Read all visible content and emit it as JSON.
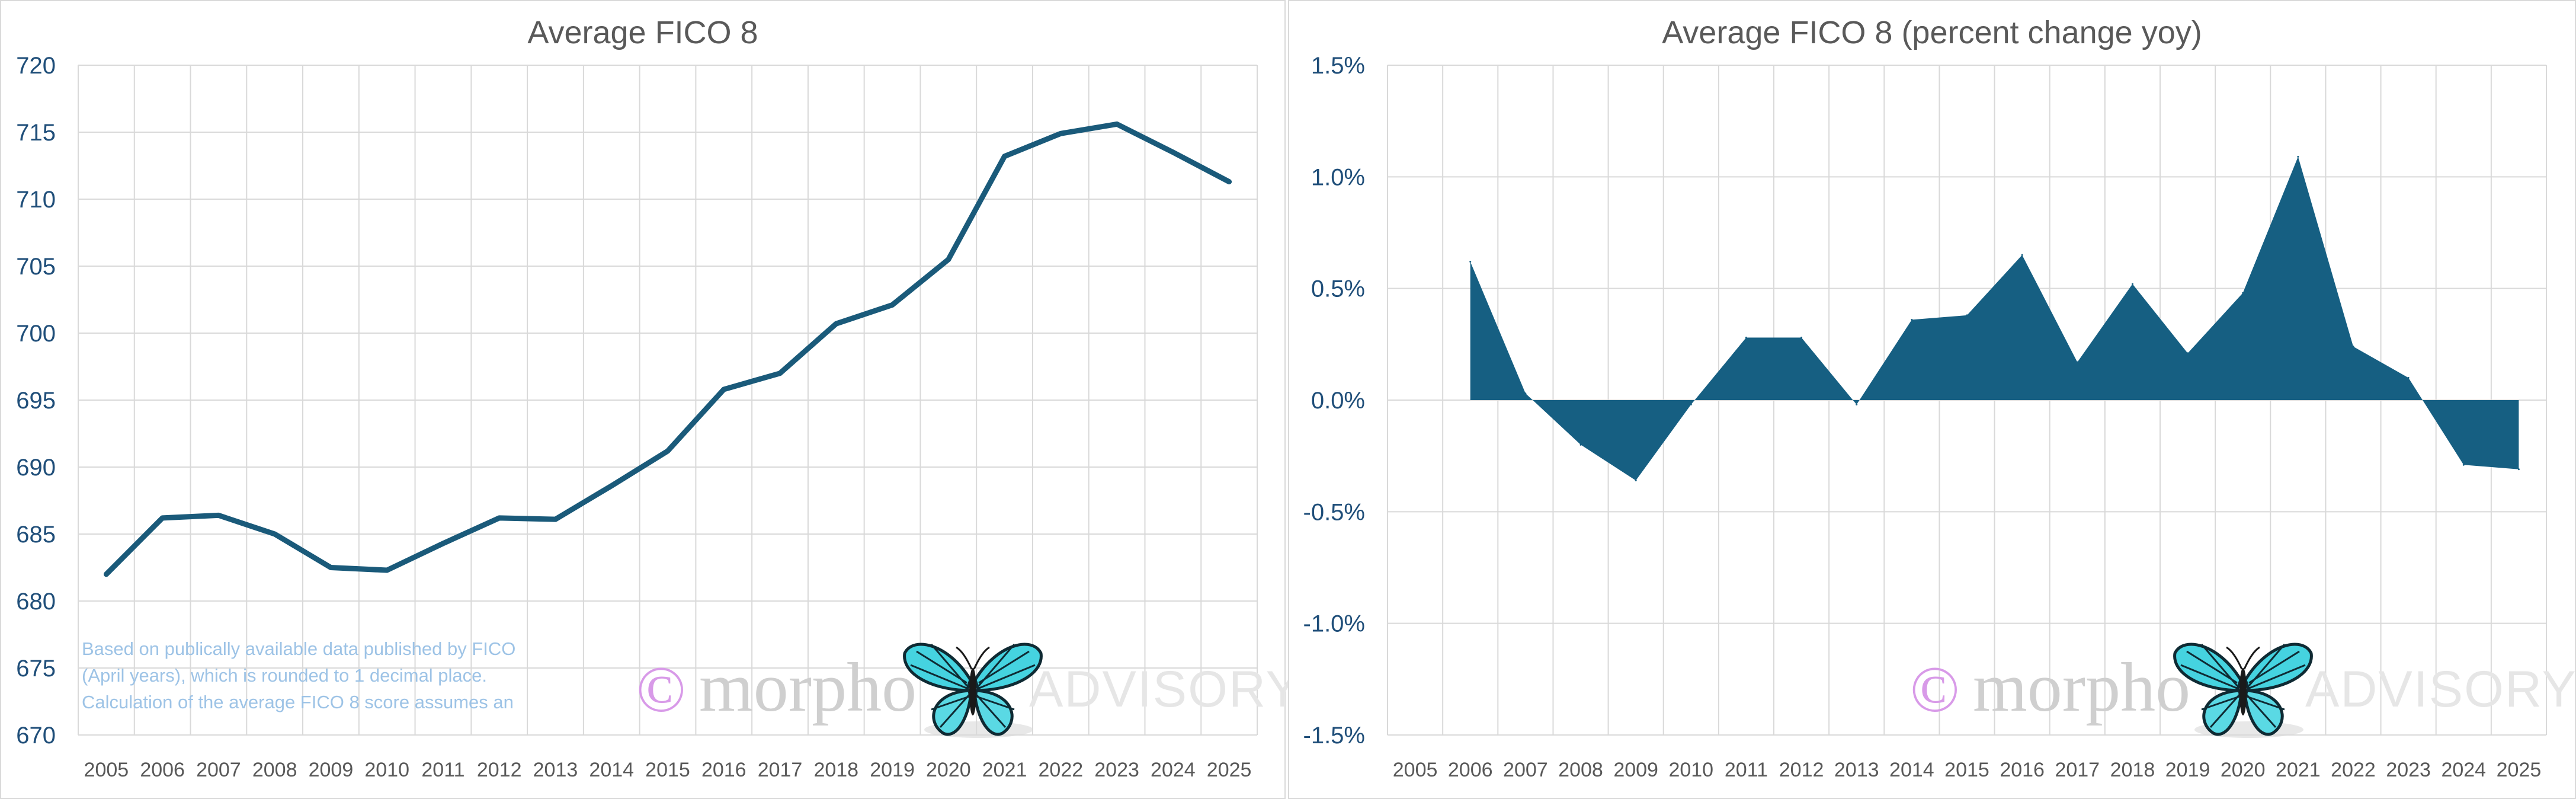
{
  "charts": [
    {
      "id": "left",
      "watermark": {
        "symbol": "©",
        "text": "morpho",
        "suffix": "ADVISORY"
      },
      "note_lines": [
        "Based on publically available data published by FICO",
        "(April years), which is rounded to 1 decimal place.",
        "Calculation of the average FICO 8 score assumes an"
      ]
    },
    {
      "id": "right",
      "watermark": {
        "symbol": "©",
        "text": "morpho",
        "suffix": "ADVISORY"
      }
    }
  ],
  "chart_data": [
    {
      "type": "line",
      "title": "Average FICO 8",
      "xlabel": "",
      "ylabel": "",
      "categories": [
        "2005",
        "2006",
        "2007",
        "2008",
        "2009",
        "2010",
        "2011",
        "2012",
        "2013",
        "2014",
        "2015",
        "2016",
        "2017",
        "2018",
        "2019",
        "2020",
        "2021",
        "2022",
        "2023",
        "2024",
        "2025"
      ],
      "series": [
        {
          "values": [
            682.0,
            686.2,
            686.4,
            685.0,
            682.5,
            682.3,
            684.3,
            686.2,
            686.1,
            688.6,
            691.2,
            695.8,
            697.0,
            700.7,
            702.1,
            705.5,
            713.2,
            714.9,
            715.6,
            713.5,
            711.3
          ]
        }
      ],
      "ylim": [
        670,
        720
      ],
      "yticks": [
        720,
        715,
        710,
        705,
        700,
        695,
        690,
        685,
        680,
        675,
        670
      ],
      "line_color": "#1a5a7a",
      "grid": true,
      "legend": "none"
    },
    {
      "type": "area",
      "title": "Average FICO 8 (percent change yoy)",
      "xlabel": "",
      "ylabel": "",
      "categories": [
        "2005",
        "2006",
        "2007",
        "2008",
        "2009",
        "2010",
        "2011",
        "2012",
        "2013",
        "2014",
        "2015",
        "2016",
        "2017",
        "2018",
        "2019",
        "2020",
        "2021",
        "2022",
        "2023",
        "2024",
        "2025"
      ],
      "series": [
        {
          "values": [
            null,
            0.62,
            0.03,
            -0.2,
            -0.36,
            -0.02,
            0.28,
            0.28,
            -0.02,
            0.36,
            0.38,
            0.65,
            0.17,
            0.52,
            0.21,
            0.48,
            1.09,
            0.24,
            0.1,
            -0.29,
            -0.31
          ]
        }
      ],
      "ylim": [
        -1.5,
        1.5
      ],
      "yticks": [
        "1.5%",
        "1.0%",
        "0.5%",
        "0.0%",
        "-0.5%",
        "-1.0%",
        "-1.5%"
      ],
      "fill_color": "#165f82",
      "grid": true,
      "legend": "none"
    }
  ]
}
